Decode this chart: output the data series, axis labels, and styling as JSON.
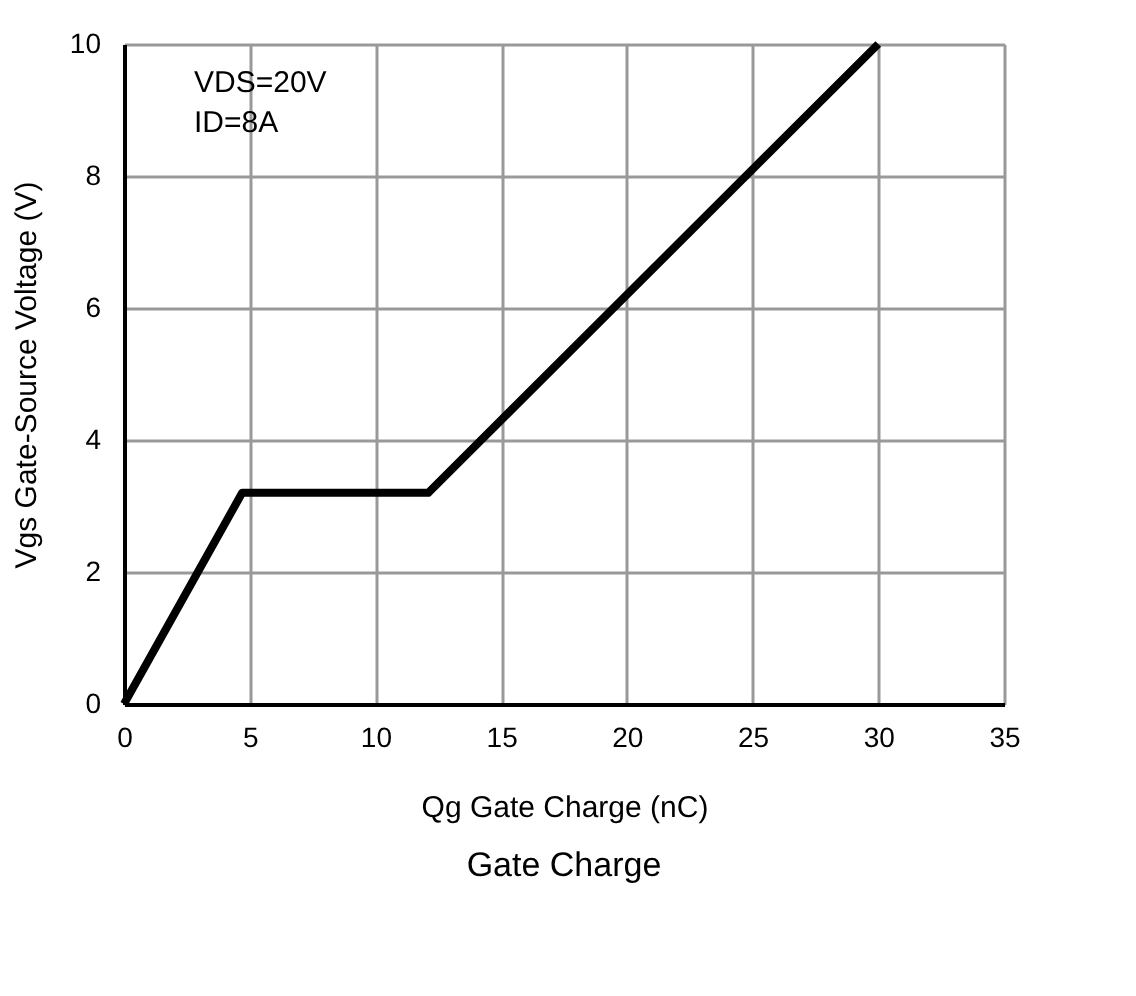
{
  "chart_data": {
    "type": "line",
    "title": "Gate Charge",
    "xlabel": "Qg Gate Charge (nC)",
    "ylabel": "Vgs Gate-Source Voltage (V)",
    "x": [
      0,
      4.7,
      12.1,
      30
    ],
    "series": [
      {
        "color": "#000000",
        "values": [
          0,
          3.2,
          3.2,
          10
        ]
      }
    ],
    "xlim": [
      0,
      35
    ],
    "xticks": [
      0,
      5,
      10,
      15,
      20,
      25,
      30,
      35
    ],
    "ylim": [
      0,
      10
    ],
    "yticks": [
      0,
      2,
      4,
      6,
      8,
      10
    ],
    "grid": true,
    "marker": "none",
    "line_style": "solid",
    "annotations": [
      "VDS=20V",
      "ID=8A"
    ]
  }
}
